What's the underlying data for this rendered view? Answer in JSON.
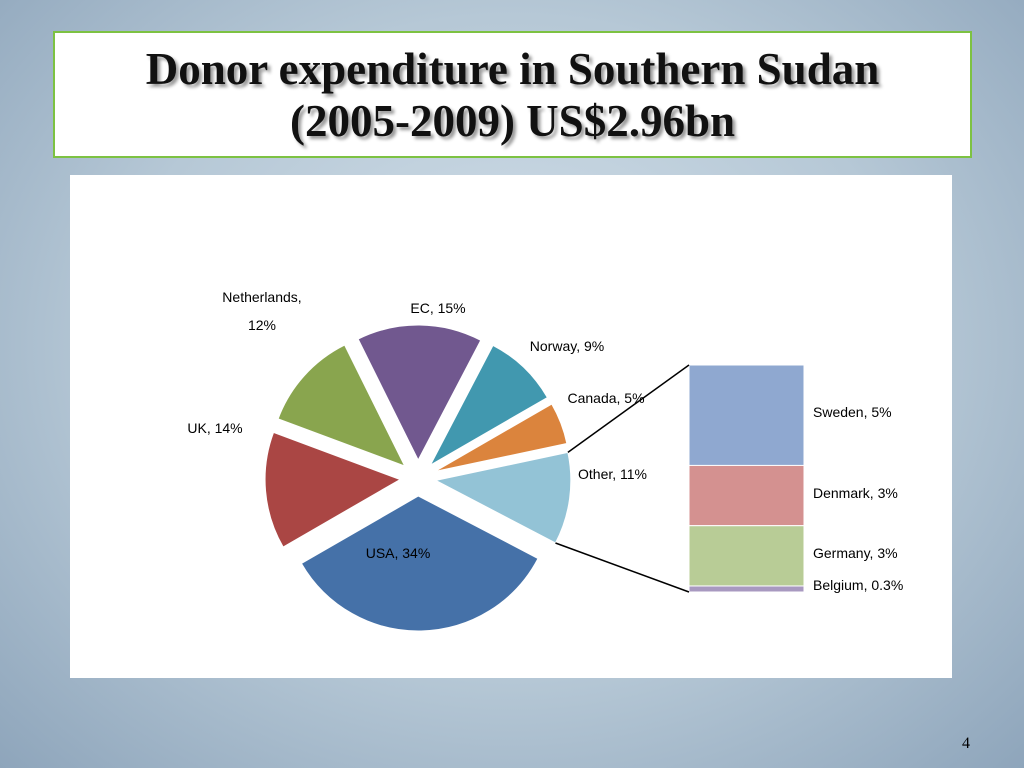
{
  "title": "Donor expenditure in Southern Sudan (2005-2009) US$2.96bn",
  "slide_number": 4,
  "chart_data": {
    "type": "pie-of-bar",
    "categories": [
      "Other",
      "USA",
      "UK",
      "Netherlands",
      "EC",
      "Norway",
      "Canada"
    ],
    "values": [
      11,
      34,
      14,
      12,
      15,
      9,
      5
    ],
    "value_labels": [
      "Other, 11%",
      "USA, 34%",
      "UK, 14%",
      "Netherlands, 12%",
      "EC, 15%",
      "Norway, 9%",
      "Canada, 5%"
    ],
    "colors": [
      "#93c3d6",
      "#4571a8",
      "#aa4644",
      "#89a54e",
      "#71588f",
      "#4198af",
      "#db843d"
    ],
    "bar": {
      "categories": [
        "Sweden",
        "Denmark",
        "Germany",
        "Belgium"
      ],
      "values": [
        5,
        3,
        3,
        0.3
      ],
      "value_labels": [
        "Sweden, 5%",
        "Denmark, 3%",
        "Germany, 3%",
        "Belgium, 0.3%"
      ],
      "colors": [
        "#8fa8d0",
        "#d49190",
        "#b8cc96",
        "#a899c0"
      ]
    }
  }
}
